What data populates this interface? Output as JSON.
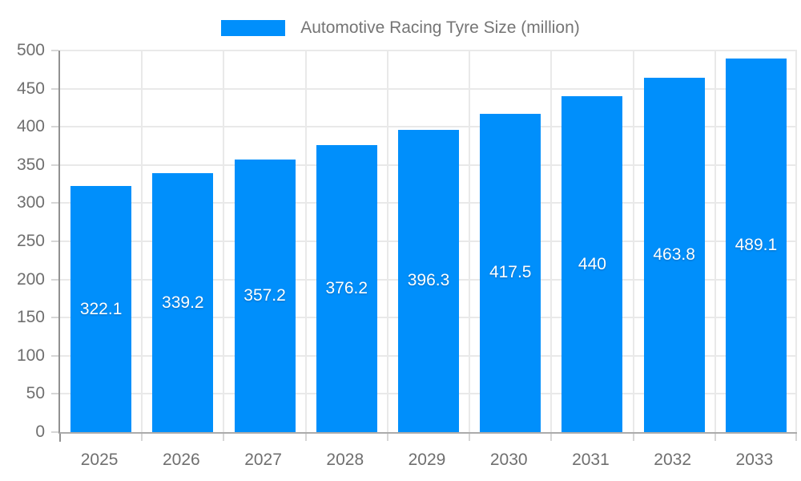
{
  "legend": {
    "label": "Automotive Racing Tyre Size (million)"
  },
  "chart_data": {
    "type": "bar",
    "title": "Automotive Racing Tyre Size (million)",
    "categories": [
      "2025",
      "2026",
      "2027",
      "2028",
      "2029",
      "2030",
      "2031",
      "2032",
      "2033"
    ],
    "series": [
      {
        "name": "Automotive Racing Tyre Size (million)",
        "values": [
          322.1,
          339.2,
          357.2,
          376.2,
          396.3,
          417.5,
          440,
          463.8,
          489.1
        ],
        "color": "#008FFB"
      }
    ],
    "data_labels": [
      "322.1",
      "339.2",
      "357.2",
      "376.2",
      "396.3",
      "417.5",
      "440",
      "463.8",
      "489.1"
    ],
    "xlabel": "",
    "ylabel": "",
    "ylim": [
      0,
      500
    ],
    "ytick_step": 50,
    "yticks": [
      "0",
      "50",
      "100",
      "150",
      "200",
      "250",
      "300",
      "350",
      "400",
      "450",
      "500"
    ],
    "grid": true,
    "legend_position": "top",
    "bar_color": "#008FFB",
    "value_label_color": "#ffffff",
    "axis_label_color": "#6f6f6f"
  }
}
